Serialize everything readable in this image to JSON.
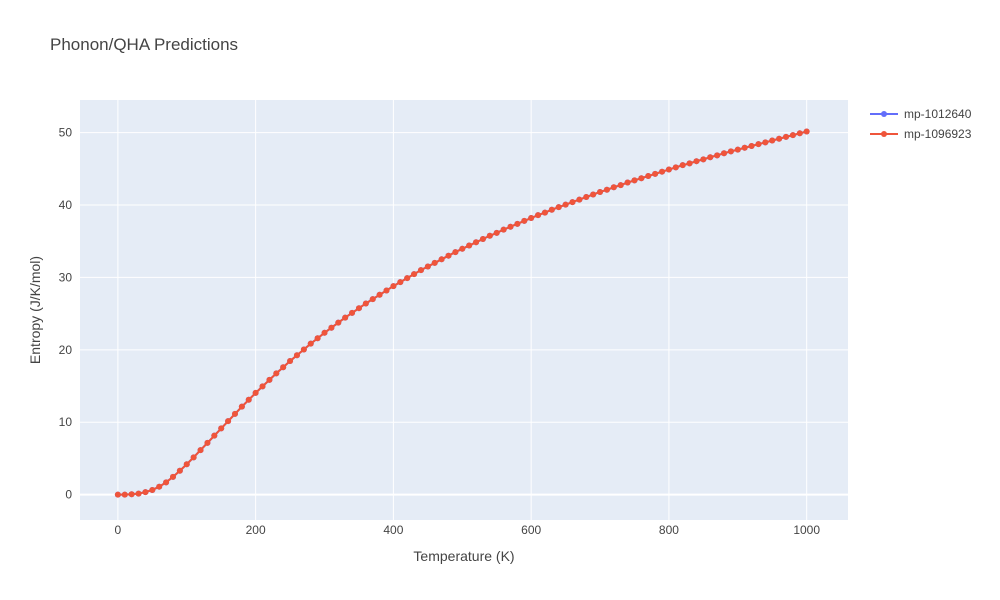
{
  "chart_data": {
    "type": "line",
    "title": "Phonon/QHA Predictions",
    "xlabel": "Temperature (K)",
    "ylabel": "Entropy (J/K/mol)",
    "xlim": [
      -55,
      1060
    ],
    "ylim": [
      -3.5,
      54.5
    ],
    "xticks": [
      0,
      200,
      400,
      600,
      800,
      1000
    ],
    "xtick_labels": [
      "0",
      "200",
      "400",
      "600",
      "800",
      "1000"
    ],
    "yticks": [
      0,
      10,
      20,
      30,
      40,
      50
    ],
    "ytick_labels": [
      "0",
      "10",
      "20",
      "30",
      "40",
      "50"
    ],
    "grid": true,
    "legend_position": "top-right",
    "x": [
      0,
      10,
      20,
      30,
      40,
      50,
      60,
      70,
      80,
      90,
      100,
      110,
      120,
      130,
      140,
      150,
      160,
      170,
      180,
      190,
      200,
      210,
      220,
      230,
      240,
      250,
      260,
      270,
      280,
      290,
      300,
      310,
      320,
      330,
      340,
      350,
      360,
      370,
      380,
      390,
      400,
      410,
      420,
      430,
      440,
      450,
      460,
      470,
      480,
      490,
      500,
      510,
      520,
      530,
      540,
      550,
      560,
      570,
      580,
      590,
      600,
      610,
      620,
      630,
      640,
      650,
      660,
      670,
      680,
      690,
      700,
      710,
      720,
      730,
      740,
      750,
      760,
      770,
      780,
      790,
      800,
      810,
      820,
      830,
      840,
      850,
      860,
      870,
      880,
      890,
      900,
      910,
      920,
      930,
      940,
      950,
      960,
      970,
      980,
      990,
      1000
    ],
    "series": [
      {
        "name": "mp-1012640",
        "color": "#636efa",
        "values": [
          0,
          0,
          0.05,
          0.15,
          0.35,
          0.65,
          1.1,
          1.7,
          2.45,
          3.3,
          4.2,
          5.15,
          6.15,
          7.15,
          8.15,
          9.15,
          10.15,
          11.15,
          12.15,
          13.1,
          14.05,
          14.95,
          15.85,
          16.75,
          17.6,
          18.45,
          19.25,
          20.05,
          20.85,
          21.6,
          22.35,
          23.05,
          23.75,
          24.45,
          25.1,
          25.75,
          26.4,
          27.0,
          27.6,
          28.2,
          28.8,
          29.35,
          29.9,
          30.45,
          31.0,
          31.5,
          32.0,
          32.5,
          33.0,
          33.5,
          33.95,
          34.4,
          34.85,
          35.3,
          35.75,
          36.15,
          36.6,
          37.0,
          37.4,
          37.8,
          38.2,
          38.6,
          38.95,
          39.35,
          39.7,
          40.05,
          40.4,
          40.75,
          41.1,
          41.45,
          41.8,
          42.1,
          42.45,
          42.75,
          43.1,
          43.4,
          43.7,
          44.0,
          44.3,
          44.6,
          44.9,
          45.2,
          45.5,
          45.75,
          46.05,
          46.3,
          46.6,
          46.85,
          47.15,
          47.4,
          47.65,
          47.9,
          48.15,
          48.4,
          48.65,
          48.9,
          49.15,
          49.4,
          49.65,
          49.9,
          50.15
        ]
      },
      {
        "name": "mp-1096923",
        "color": "#ef553b",
        "values": [
          0,
          0,
          0.05,
          0.15,
          0.35,
          0.65,
          1.1,
          1.7,
          2.45,
          3.3,
          4.2,
          5.15,
          6.15,
          7.15,
          8.15,
          9.15,
          10.15,
          11.15,
          12.15,
          13.1,
          14.05,
          14.95,
          15.85,
          16.75,
          17.6,
          18.45,
          19.25,
          20.05,
          20.85,
          21.6,
          22.35,
          23.05,
          23.75,
          24.45,
          25.1,
          25.75,
          26.4,
          27.0,
          27.6,
          28.2,
          28.8,
          29.35,
          29.9,
          30.45,
          31.0,
          31.5,
          32.0,
          32.5,
          33.0,
          33.5,
          33.95,
          34.4,
          34.85,
          35.3,
          35.75,
          36.15,
          36.6,
          37.0,
          37.4,
          37.8,
          38.2,
          38.6,
          38.95,
          39.35,
          39.7,
          40.05,
          40.4,
          40.75,
          41.1,
          41.45,
          41.8,
          42.1,
          42.45,
          42.75,
          43.1,
          43.4,
          43.7,
          44.0,
          44.3,
          44.6,
          44.9,
          45.2,
          45.5,
          45.75,
          46.05,
          46.3,
          46.6,
          46.85,
          47.15,
          47.4,
          47.65,
          47.9,
          48.15,
          48.4,
          48.65,
          48.9,
          49.15,
          49.4,
          49.65,
          49.9,
          50.15
        ]
      }
    ]
  }
}
